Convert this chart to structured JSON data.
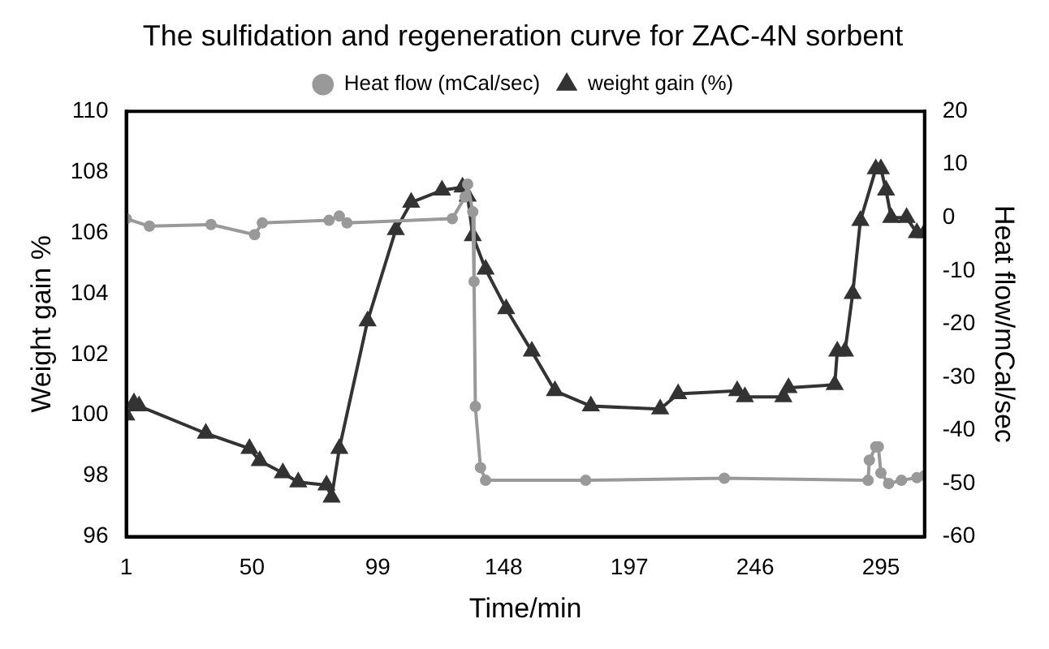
{
  "chart_data": {
    "type": "line",
    "title": "The sulfidation and regeneration curve for ZAC-4N sorbent",
    "xlabel": "Time/min",
    "ylabel": "Weight gain %",
    "y2label": "Heat flow/mCal/sec",
    "xlim": [
      1,
      312
    ],
    "xticks": [
      1,
      50,
      99,
      148,
      197,
      246,
      295
    ],
    "ylim": [
      96,
      110
    ],
    "yticks": [
      96,
      98,
      100,
      102,
      104,
      106,
      108,
      110
    ],
    "y2lim": [
      -60,
      20
    ],
    "y2ticks": [
      -60,
      -50,
      -40,
      -30,
      -20,
      -10,
      0,
      10,
      20
    ],
    "grid": false,
    "legend": "top",
    "series": [
      {
        "name": "weight gain (%)",
        "color": "#333333",
        "marker": "triangle",
        "x": [
          1,
          4,
          6,
          32,
          49,
          53,
          62,
          68,
          79,
          81,
          84,
          95,
          106,
          112,
          124,
          132,
          134,
          136,
          141,
          149,
          159,
          168,
          182,
          209,
          216,
          239,
          242,
          257,
          259,
          277,
          278,
          281,
          284,
          287,
          293,
          295,
          297,
          299,
          305,
          309,
          312
        ],
        "values": [
          100,
          100.4,
          100.3,
          99.4,
          98.9,
          98.5,
          98.1,
          97.8,
          97.7,
          97.3,
          98.9,
          103.1,
          106.1,
          107,
          107.4,
          107.5,
          107.2,
          105.9,
          104.8,
          103.5,
          102.1,
          100.8,
          100.3,
          100.2,
          100.7,
          100.8,
          100.6,
          100.6,
          100.9,
          101,
          102.1,
          102.1,
          104,
          106.4,
          108.1,
          108.1,
          107.4,
          106.5,
          106.5,
          106,
          106
        ]
      },
      {
        "name": "Heat flow (mCal/sec)",
        "color": "#999999",
        "marker": "circle",
        "axis": "y2",
        "x": [
          1,
          10,
          34,
          51,
          54,
          80,
          84,
          87,
          128,
          133,
          134,
          136,
          136.5,
          137,
          139,
          141,
          180,
          234,
          290,
          290.5,
          293,
          294,
          295,
          298,
          303,
          309,
          312
        ],
        "values": [
          -0.2,
          -1.6,
          -1.3,
          -3.2,
          -1,
          -0.5,
          0.3,
          -1,
          -0.2,
          3.9,
          6.3,
          1.1,
          -12,
          -35.5,
          -47,
          -49.4,
          -49.4,
          -49,
          -49.4,
          -45.6,
          -43.1,
          -43.1,
          -48,
          -50,
          -49.4,
          -48.9,
          -48.5
        ]
      }
    ]
  }
}
